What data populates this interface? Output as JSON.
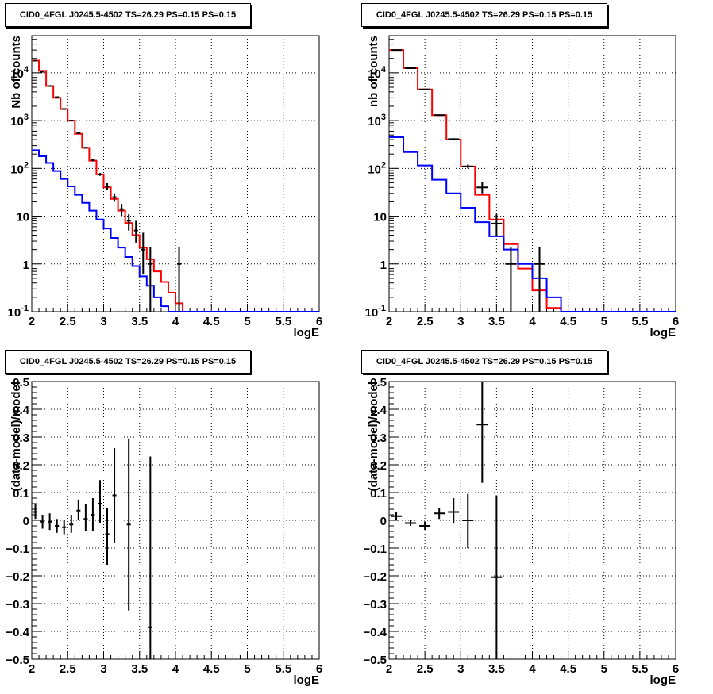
{
  "chart_data": [
    {
      "type": "line",
      "title": "CID0_4FGL J0245.5-4502 TS=26.29 PS=0.15 PS=0.15",
      "xlabel": "logE",
      "ylabel": "Nb of counts",
      "xlim": [
        2,
        6
      ],
      "ylim": [
        0.1,
        60000
      ],
      "yscale": "log",
      "grid": true,
      "xticks": [
        2,
        2.5,
        3,
        3.5,
        4,
        4.5,
        5,
        5.5,
        6
      ],
      "xtick_labels": [
        "2",
        "2.5",
        "3",
        "3.5",
        "4",
        "4.5",
        "5",
        "5.5",
        "6"
      ],
      "yticks": [
        0.1,
        1,
        10,
        100,
        1000,
        10000
      ],
      "ytick_labels": [
        "10^-1",
        "1",
        "10",
        "10^2",
        "10^3",
        "10^4"
      ],
      "series": [
        {
          "color": "#ff0000",
          "style": "step",
          "bin_edges": [
            2.0,
            2.1,
            2.2,
            2.3,
            2.4,
            2.5,
            2.6,
            2.7,
            2.8,
            2.9,
            3.0,
            3.1,
            3.2,
            3.3,
            3.4,
            3.5,
            3.6,
            3.7,
            3.8,
            3.9,
            4.0,
            4.1,
            4.2,
            4.3,
            4.4,
            4.5,
            4.6,
            4.7,
            4.8,
            4.9,
            5.0,
            5.1,
            5.2,
            5.3,
            5.4,
            5.5,
            5.6,
            5.7,
            5.8,
            5.9,
            6.0
          ],
          "values": [
            18000,
            11000,
            5300,
            3000,
            1750,
            1000,
            530,
            270,
            145,
            75,
            40,
            23,
            13,
            7.2,
            4.0,
            2.2,
            1.25,
            0.7,
            0.42,
            0.25,
            0.15,
            0.1,
            0.1,
            0.1,
            0.1,
            0.1,
            0.1,
            0.1,
            0.1,
            0.1,
            0.1,
            0.1,
            0.1,
            0.1,
            0.1,
            0.1,
            0.1,
            0.1,
            0.1,
            0.1
          ]
        },
        {
          "color": "#0000ff",
          "style": "step",
          "bin_edges": [
            2.0,
            2.1,
            2.2,
            2.3,
            2.4,
            2.5,
            2.6,
            2.7,
            2.8,
            2.9,
            3.0,
            3.1,
            3.2,
            3.3,
            3.4,
            3.5,
            3.6,
            3.7,
            3.8,
            3.9,
            4.0,
            4.1,
            4.2,
            4.3,
            4.4,
            4.5,
            4.6,
            4.7,
            4.8,
            4.9,
            5.0,
            5.1,
            5.2,
            5.3,
            5.4,
            5.5,
            5.6,
            5.7,
            5.8,
            5.9,
            6.0
          ],
          "values": [
            240,
            180,
            130,
            88,
            60,
            42,
            28,
            19,
            13,
            8.5,
            5.5,
            3.5,
            2.2,
            1.4,
            0.9,
            0.55,
            0.35,
            0.2,
            0.13,
            0.1,
            0.1,
            0.1,
            0.1,
            0.1,
            0.1,
            0.1,
            0.1,
            0.1,
            0.1,
            0.1,
            0.1,
            0.1,
            0.1,
            0.1,
            0.1,
            0.1,
            0.1,
            0.1,
            0.1,
            0.1
          ]
        },
        {
          "color": "#000000",
          "style": "errorbar",
          "x": [
            2.05,
            2.15,
            2.25,
            2.35,
            2.45,
            2.55,
            2.65,
            2.75,
            2.85,
            2.95,
            3.05,
            3.15,
            3.25,
            3.35,
            3.45,
            3.55,
            3.65,
            4.05
          ],
          "y": [
            18000,
            10500,
            5300,
            3100,
            1750,
            1000,
            550,
            270,
            150,
            75,
            42,
            25,
            14,
            8,
            5,
            2,
            1,
            1
          ],
          "ylo": [
            17800,
            10300,
            5200,
            3000,
            1700,
            980,
            530,
            260,
            140,
            70,
            35,
            20,
            10,
            5,
            2.8,
            0.6,
            0.1,
            0.1
          ],
          "yhi": [
            18200,
            10700,
            5400,
            3200,
            1800,
            1020,
            570,
            280,
            160,
            80,
            49,
            30,
            18,
            11,
            8,
            4.5,
            2.3,
            2.3
          ]
        }
      ]
    },
    {
      "type": "line",
      "title": "CID0_4FGL J0245.5-4502 TS=26.29 PS=0.15 PS=0.15",
      "xlabel": "logE",
      "ylabel": "nb of counts",
      "xlim": [
        2,
        6
      ],
      "ylim": [
        0.1,
        60000
      ],
      "yscale": "log",
      "grid": true,
      "xticks": [
        2,
        2.5,
        3,
        3.5,
        4,
        4.5,
        5,
        5.5,
        6
      ],
      "xtick_labels": [
        "2",
        "2.5",
        "3",
        "3.5",
        "4",
        "4.5",
        "5",
        "5.5",
        "6"
      ],
      "yticks": [
        0.1,
        1,
        10,
        100,
        1000,
        10000
      ],
      "ytick_labels": [
        "10^-1",
        "1",
        "10",
        "10^2",
        "10^3",
        "10^4"
      ],
      "series": [
        {
          "color": "#ff0000",
          "style": "step",
          "bin_edges": [
            2.0,
            2.2,
            2.4,
            2.6,
            2.8,
            3.0,
            3.2,
            3.4,
            3.6,
            3.8,
            4.0,
            4.2,
            4.4,
            4.6,
            4.8,
            5.0,
            5.2,
            5.4,
            5.6,
            5.8,
            6.0
          ],
          "values": [
            30000,
            12500,
            4500,
            1300,
            400,
            110,
            28,
            8.5,
            2.6,
            0.8,
            0.28,
            0.12,
            0.1,
            0.1,
            0.1,
            0.1,
            0.1,
            0.1,
            0.1,
            0.1
          ]
        },
        {
          "color": "#0000ff",
          "style": "step",
          "bin_edges": [
            2.0,
            2.2,
            2.4,
            2.6,
            2.8,
            3.0,
            3.2,
            3.4,
            3.6,
            3.8,
            4.0,
            4.2,
            4.4,
            4.6,
            4.8,
            5.0,
            5.2,
            5.4,
            5.6,
            5.8,
            6.0
          ],
          "values": [
            450,
            220,
            115,
            58,
            30,
            15,
            7.5,
            3.8,
            2.0,
            1.0,
            0.5,
            0.2,
            0.1,
            0.1,
            0.1,
            0.1,
            0.1,
            0.1,
            0.1,
            0.1
          ]
        },
        {
          "color": "#000000",
          "style": "errorbar",
          "x": [
            2.1,
            2.3,
            2.5,
            2.7,
            2.9,
            3.1,
            3.3,
            3.5,
            3.7,
            4.1
          ],
          "y": [
            30000,
            12500,
            4500,
            1300,
            410,
            110,
            40,
            7,
            1,
            1
          ],
          "ylo": [
            29700,
            12300,
            4400,
            1260,
            390,
            100,
            30,
            3.8,
            0.1,
            0.1
          ],
          "yhi": [
            30300,
            12700,
            4600,
            1340,
            430,
            121,
            52,
            11,
            2.3,
            2.3
          ],
          "xerr": 0.1
        }
      ]
    },
    {
      "type": "scatter",
      "title": "CID0_4FGL J0245.5-4502 TS=26.29 PS=0.15 PS=0.15",
      "xlabel": "logE",
      "ylabel": "(data-model)/model",
      "xlim": [
        2,
        6
      ],
      "ylim": [
        -0.5,
        0.5
      ],
      "grid": true,
      "xticks": [
        2,
        2.5,
        3,
        3.5,
        4,
        4.5,
        5,
        5.5,
        6
      ],
      "xtick_labels": [
        "2",
        "2.5",
        "3",
        "3.5",
        "4",
        "4.5",
        "5",
        "5.5",
        "6"
      ],
      "yticks": [
        -0.5,
        -0.4,
        -0.3,
        -0.2,
        -0.1,
        0,
        0.1,
        0.2,
        0.3,
        0.4,
        0.5
      ],
      "ytick_labels": [
        "−0.5",
        "−0.4",
        "−0.3",
        "−0.2",
        "−0.1",
        "0",
        "0.1",
        "0.2",
        "0.3",
        "0.4",
        "0.5"
      ],
      "series": [
        {
          "color": "#000000",
          "style": "errorbar",
          "x": [
            2.05,
            2.15,
            2.25,
            2.35,
            2.45,
            2.55,
            2.65,
            2.75,
            2.85,
            2.95,
            3.05,
            3.15,
            3.35,
            3.65
          ],
          "y": [
            0.03,
            -0.005,
            -0.005,
            -0.02,
            -0.025,
            -0.015,
            0.035,
            0.005,
            0.02,
            0.06,
            -0.05,
            0.09,
            -0.015,
            -0.385
          ],
          "ylo": [
            0.005,
            -0.03,
            -0.035,
            -0.045,
            -0.05,
            -0.045,
            0.0,
            -0.04,
            -0.04,
            -0.01,
            -0.16,
            -0.08,
            -0.325,
            -0.5
          ],
          "yhi": [
            0.06,
            0.02,
            0.025,
            0.005,
            0.0,
            0.02,
            0.075,
            0.06,
            0.08,
            0.145,
            0.045,
            0.26,
            0.295,
            0.23
          ],
          "xerr": 0.05
        }
      ]
    },
    {
      "type": "scatter",
      "title": "CID0_4FGL J0245.5-4502 TS=26.29 PS=0.15 PS=0.15",
      "xlabel": "logE",
      "ylabel": "(data-model)/model",
      "xlim": [
        2,
        6
      ],
      "ylim": [
        -0.5,
        0.5
      ],
      "grid": true,
      "xticks": [
        2,
        2.5,
        3,
        3.5,
        4,
        4.5,
        5,
        5.5,
        6
      ],
      "xtick_labels": [
        "2",
        "2.5",
        "3",
        "3.5",
        "4",
        "4.5",
        "5",
        "5.5",
        "6"
      ],
      "yticks": [
        -0.5,
        -0.4,
        -0.3,
        -0.2,
        -0.1,
        0,
        0.1,
        0.2,
        0.3,
        0.4,
        0.5
      ],
      "ytick_labels": [
        "−0.5",
        "−0.4",
        "−0.3",
        "−0.2",
        "−0.1",
        "0",
        "0.1",
        "0.2",
        "0.3",
        "0.4",
        "0.5"
      ],
      "series": [
        {
          "color": "#000000",
          "style": "errorbar",
          "x": [
            2.1,
            2.3,
            2.5,
            2.7,
            2.9,
            3.1,
            3.3,
            3.5
          ],
          "y": [
            0.015,
            -0.01,
            -0.02,
            0.025,
            0.03,
            0.0,
            0.345,
            -0.205
          ],
          "ylo": [
            0.0,
            -0.02,
            -0.035,
            0.005,
            -0.01,
            -0.1,
            0.135,
            -0.5
          ],
          "yhi": [
            0.03,
            0.0,
            -0.005,
            0.045,
            0.08,
            0.095,
            0.5,
            0.09
          ],
          "xerr": 0.1
        }
      ]
    }
  ]
}
